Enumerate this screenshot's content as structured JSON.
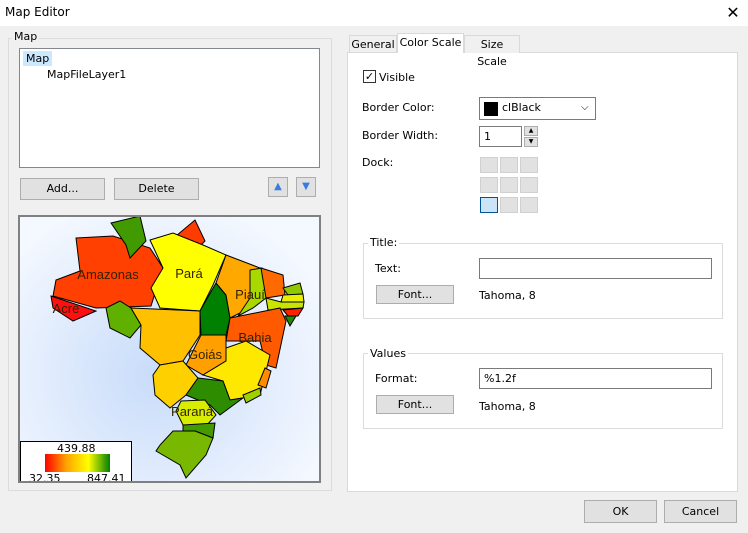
{
  "window": {
    "title": "Map Editor",
    "close_icon": "close-icon"
  },
  "map_group": {
    "label": "Map",
    "tree": [
      {
        "label": "Map",
        "selected": true
      },
      {
        "label": "MapFileLayer1"
      }
    ],
    "add_label": "Add...",
    "delete_label": "Delete"
  },
  "map": {
    "states": [
      {
        "id": "amazonas",
        "label": "Amazonas",
        "color": "#ff4000"
      },
      {
        "id": "roraima",
        "label": "",
        "color": "#409a00"
      },
      {
        "id": "amapa",
        "label": "",
        "color": "#ff3c00"
      },
      {
        "id": "para",
        "label": "Pará",
        "color": "#ffff00"
      },
      {
        "id": "acre",
        "label": "Acre",
        "color": "#ff1010"
      },
      {
        "id": "rondonia",
        "label": "",
        "color": "#60b000"
      },
      {
        "id": "matogrosso",
        "label": "",
        "color": "#ffc000"
      },
      {
        "id": "tocantins",
        "label": "",
        "color": "#008000"
      },
      {
        "id": "maranhao",
        "label": "",
        "color": "#ffa800"
      },
      {
        "id": "piaui",
        "label": "Piauí",
        "color": "#a8d800"
      },
      {
        "id": "ceara",
        "label": "",
        "color": "#ff6a00"
      },
      {
        "id": "rn",
        "label": "",
        "color": "#90c800"
      },
      {
        "id": "pb",
        "label": "",
        "color": "#e8f000"
      },
      {
        "id": "pe",
        "label": "",
        "color": "#c8e400"
      },
      {
        "id": "al",
        "label": "",
        "color": "#ff2000"
      },
      {
        "id": "se",
        "label": "",
        "color": "#208c00"
      },
      {
        "id": "bahia",
        "label": "Bahia",
        "color": "#ff5a00"
      },
      {
        "id": "goias",
        "label": "Goiás",
        "color": "#ffa000"
      },
      {
        "id": "minas",
        "label": "",
        "color": "#ffe800"
      },
      {
        "id": "es",
        "label": "",
        "color": "#ff8c00"
      },
      {
        "id": "rj",
        "label": "",
        "color": "#a0d000"
      },
      {
        "id": "ms",
        "label": "",
        "color": "#ffd000"
      },
      {
        "id": "sp",
        "label": "",
        "color": "#2e8c00"
      },
      {
        "id": "parana",
        "label": "Paraná",
        "color": "#d8ec00"
      },
      {
        "id": "sc",
        "label": "",
        "color": "#409a00"
      },
      {
        "id": "rs",
        "label": "",
        "color": "#78b800"
      }
    ],
    "legend": {
      "mid": "439.88",
      "min": "32.35",
      "max": "847.41",
      "colors": [
        "#ff0000",
        "#ffa500",
        "#ffff00",
        "#008000"
      ]
    }
  },
  "tabs": [
    {
      "label": "General"
    },
    {
      "label": "Color Scale",
      "active": true
    },
    {
      "label": "Size Scale"
    }
  ],
  "color_scale": {
    "visible_label": "Visible",
    "visible": true,
    "border_color_label": "Border Color:",
    "border_color_value": "clBlack",
    "border_color_swatch": "#000000",
    "border_width_label": "Border Width:",
    "border_width_value": "1",
    "dock_label": "Dock:",
    "dock_selected": "bottom-left",
    "title_group": {
      "label": "Title:",
      "text_label": "Text:",
      "text_value": "",
      "font_button": "Font...",
      "font_value": "Tahoma, 8"
    },
    "values_group": {
      "label": "Values",
      "format_label": "Format:",
      "format_value": "%1.2f",
      "font_button": "Font...",
      "font_value": "Tahoma, 8"
    }
  },
  "footer": {
    "ok_label": "OK",
    "cancel_label": "Cancel"
  }
}
